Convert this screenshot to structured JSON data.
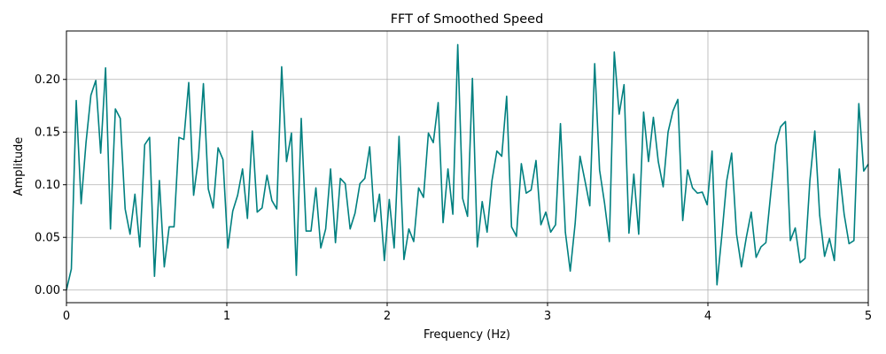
{
  "chart_data": {
    "type": "line",
    "title": "FFT of Smoothed Speed",
    "x_label": "Frequency (Hz)",
    "y_label": "Amplitude",
    "x": [
      0,
      0.0305,
      0.061,
      0.0915,
      0.122,
      0.1525,
      0.183,
      0.2135,
      0.244,
      0.2745,
      0.305,
      0.3355,
      0.366,
      0.3965,
      0.427,
      0.4575,
      0.488,
      0.5185,
      0.549,
      0.5795,
      0.61,
      0.6405,
      0.671,
      0.7015,
      0.732,
      0.7625,
      0.793,
      0.8235,
      0.854,
      0.8845,
      0.915,
      0.9455,
      0.976,
      1.0065,
      1.037,
      1.0675,
      1.098,
      1.1285,
      1.159,
      1.1895,
      1.22,
      1.2505,
      1.281,
      1.3115,
      1.342,
      1.3725,
      1.403,
      1.4335,
      1.464,
      1.4945,
      1.525,
      1.5555,
      1.586,
      1.6165,
      1.647,
      1.6775,
      1.708,
      1.7385,
      1.769,
      1.7995,
      1.83,
      1.8605,
      1.891,
      1.9215,
      1.952,
      1.9825,
      2.013,
      2.0435,
      2.074,
      2.1045,
      2.135,
      2.1655,
      2.196,
      2.2265,
      2.257,
      2.2875,
      2.318,
      2.3485,
      2.379,
      2.4095,
      2.44,
      2.4705,
      2.501,
      2.5315,
      2.562,
      2.5925,
      2.623,
      2.6535,
      2.684,
      2.7145,
      2.745,
      2.7755,
      2.806,
      2.8365,
      2.867,
      2.8975,
      2.928,
      2.9585,
      2.989,
      3.0195,
      3.05,
      3.0805,
      3.111,
      3.1415,
      3.172,
      3.2025,
      3.233,
      3.2635,
      3.294,
      3.3245,
      3.355,
      3.3855,
      3.416,
      3.4465,
      3.477,
      3.5075,
      3.538,
      3.5685,
      3.599,
      3.6295,
      3.66,
      3.6905,
      3.721,
      3.7515,
      3.782,
      3.8125,
      3.843,
      3.8735,
      3.904,
      3.9345,
      3.965,
      3.9955,
      4.026,
      4.0565,
      4.087,
      4.1175,
      4.148,
      4.1785,
      4.209,
      4.2395,
      4.27,
      4.3005,
      4.331,
      4.3615,
      4.392,
      4.4225,
      4.453,
      4.4835,
      4.514,
      4.5445,
      4.575,
      4.6055,
      4.636,
      4.6665,
      4.697,
      4.7275,
      4.758,
      4.7885,
      4.819,
      4.8495,
      4.88,
      4.9105,
      4.941,
      4.9715,
      5.002
    ],
    "series": [
      {
        "name": "Amplitude",
        "color": "#008080",
        "values": [
          0,
          0.02,
          0.18,
          0.082,
          0.14,
          0.185,
          0.199,
          0.13,
          0.211,
          0.058,
          0.172,
          0.163,
          0.077,
          0.053,
          0.091,
          0.041,
          0.138,
          0.145,
          0.013,
          0.104,
          0.022,
          0.06,
          0.06,
          0.145,
          0.143,
          0.197,
          0.09,
          0.126,
          0.196,
          0.096,
          0.078,
          0.135,
          0.124,
          0.04,
          0.075,
          0.09,
          0.115,
          0.068,
          0.151,
          0.074,
          0.078,
          0.109,
          0.085,
          0.077,
          0.212,
          0.122,
          0.149,
          0.014,
          0.163,
          0.056,
          0.056,
          0.097,
          0.04,
          0.058,
          0.115,
          0.045,
          0.106,
          0.101,
          0.058,
          0.073,
          0.101,
          0.106,
          0.136,
          0.065,
          0.091,
          0.028,
          0.086,
          0.04,
          0.146,
          0.029,
          0.058,
          0.046,
          0.097,
          0.088,
          0.149,
          0.14,
          0.178,
          0.064,
          0.115,
          0.072,
          0.233,
          0.087,
          0.07,
          0.201,
          0.041,
          0.084,
          0.055,
          0.104,
          0.132,
          0.127,
          0.184,
          0.06,
          0.051,
          0.12,
          0.092,
          0.095,
          0.123,
          0.062,
          0.074,
          0.055,
          0.062,
          0.158,
          0.055,
          0.018,
          0.063,
          0.127,
          0.104,
          0.08,
          0.215,
          0.114,
          0.083,
          0.046,
          0.226,
          0.167,
          0.195,
          0.054,
          0.11,
          0.053,
          0.169,
          0.122,
          0.164,
          0.122,
          0.098,
          0.15,
          0.17,
          0.181,
          0.066,
          0.114,
          0.097,
          0.092,
          0.093,
          0.081,
          0.132,
          0.005,
          0.052,
          0.104,
          0.13,
          0.053,
          0.022,
          0.05,
          0.074,
          0.031,
          0.041,
          0.045,
          0.092,
          0.138,
          0.155,
          0.16,
          0.047,
          0.059,
          0.026,
          0.03,
          0.104,
          0.151,
          0.071,
          0.032,
          0.049,
          0.028,
          0.115,
          0.072,
          0.044,
          0.047,
          0.177,
          0.113,
          0.12
        ]
      }
    ],
    "xlim": [
      0,
      5
    ],
    "ylim": [
      -0.012,
      0.246
    ],
    "xticks": [
      0,
      1,
      2,
      3,
      4,
      5
    ],
    "yticks": [
      {
        "value": 0,
        "label": "0.00"
      },
      {
        "value": 0.05,
        "label": "0.05"
      },
      {
        "value": 0.1,
        "label": "0.10"
      },
      {
        "value": 0.15,
        "label": "0.15"
      },
      {
        "value": 0.2,
        "label": "0.20"
      }
    ],
    "grid": true
  }
}
